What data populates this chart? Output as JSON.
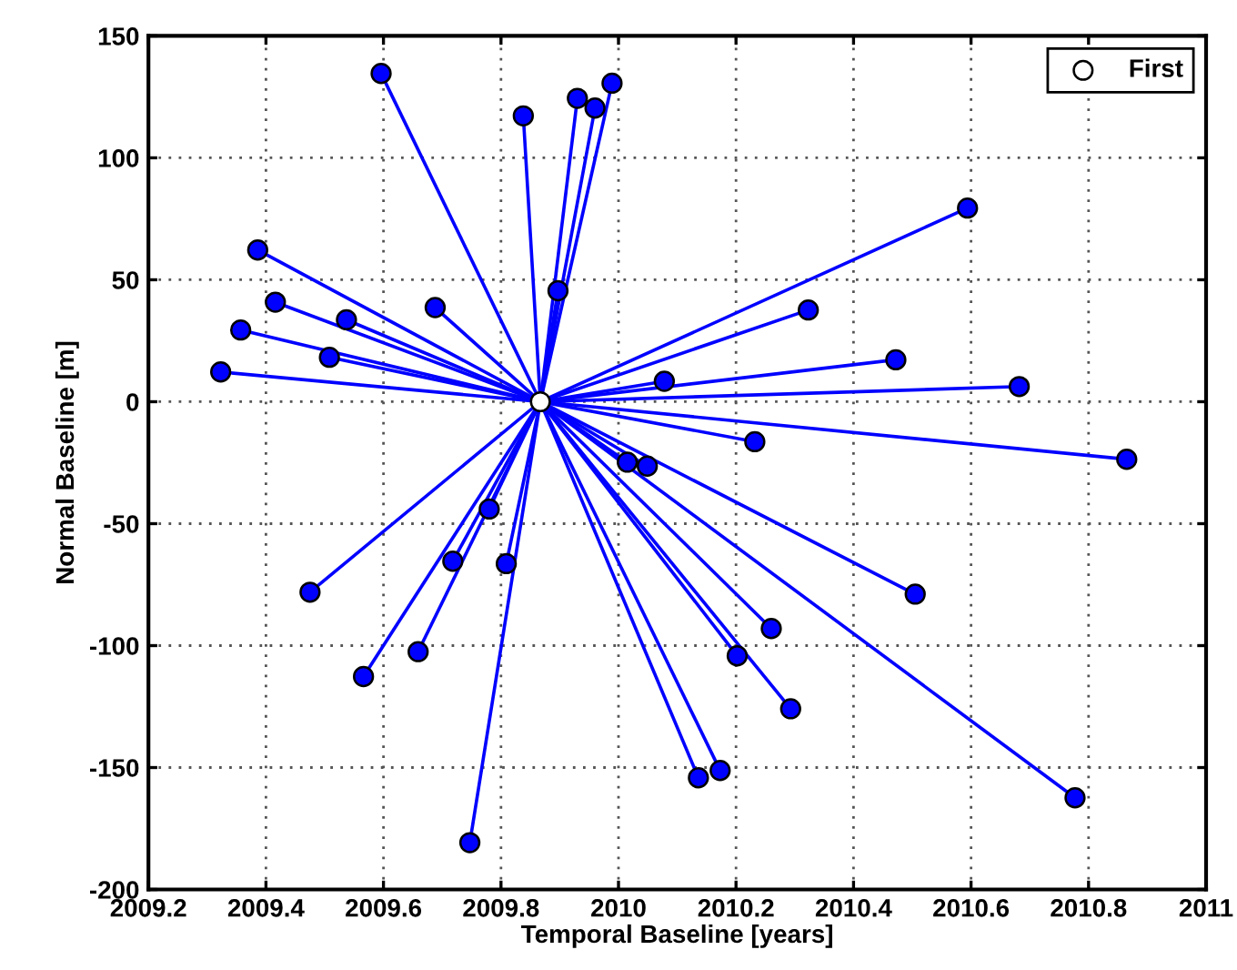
{
  "chart_data": {
    "type": "line",
    "xlabel": "Temporal Baseline [years]",
    "ylabel": "Normal Baseline [m]",
    "xlim": [
      2009.2,
      2011
    ],
    "ylim": [
      -200,
      150
    ],
    "xticks": [
      2009.2,
      2009.4,
      2009.6,
      2009.8,
      2010,
      2010.2,
      2010.4,
      2010.6,
      2010.8,
      2011
    ],
    "yticks": [
      -200,
      -150,
      -100,
      -50,
      0,
      50,
      100,
      150
    ],
    "grid": true,
    "legend": "top right",
    "marker": "circle",
    "line_style": "solid",
    "series": [
      {
        "color": "#0000ff",
        "x": [
          2009.867,
          2009.596
        ],
        "values": [
          0,
          134.6
        ]
      },
      {
        "color": "#0000ff",
        "x": [
          2009.867,
          2009.838
        ],
        "values": [
          0,
          117.2
        ]
      },
      {
        "color": "#0000ff",
        "x": [
          2009.867,
          2009.93
        ],
        "values": [
          0,
          124.4
        ]
      },
      {
        "color": "#0000ff",
        "x": [
          2009.867,
          2009.96
        ],
        "values": [
          0,
          120.4
        ]
      },
      {
        "color": "#0000ff",
        "x": [
          2009.867,
          2009.989
        ],
        "values": [
          0,
          130.6
        ]
      },
      {
        "color": "#0000ff",
        "x": [
          2009.867,
          2009.897
        ],
        "values": [
          0,
          45.5
        ]
      },
      {
        "color": "#0000ff",
        "x": [
          2009.867,
          2009.386
        ],
        "values": [
          0,
          62.2
        ]
      },
      {
        "color": "#0000ff",
        "x": [
          2009.867,
          2009.416
        ],
        "values": [
          0,
          40.8
        ]
      },
      {
        "color": "#0000ff",
        "x": [
          2009.867,
          2009.357
        ],
        "values": [
          0,
          29.4
        ]
      },
      {
        "color": "#0000ff",
        "x": [
          2009.867,
          2009.537
        ],
        "values": [
          0,
          33.6
        ]
      },
      {
        "color": "#0000ff",
        "x": [
          2009.867,
          2009.508
        ],
        "values": [
          0,
          18.2
        ]
      },
      {
        "color": "#0000ff",
        "x": [
          2009.867,
          2009.323
        ],
        "values": [
          0,
          12.2
        ]
      },
      {
        "color": "#0000ff",
        "x": [
          2009.867,
          2009.688
        ],
        "values": [
          0,
          38.6
        ]
      },
      {
        "color": "#0000ff",
        "x": [
          2009.867,
          2010.078
        ],
        "values": [
          0,
          8.4
        ]
      },
      {
        "color": "#0000ff",
        "x": [
          2009.867,
          2010.594
        ],
        "values": [
          0,
          79.4
        ]
      },
      {
        "color": "#0000ff",
        "x": [
          2009.867,
          2010.323
        ],
        "values": [
          0,
          37.6
        ]
      },
      {
        "color": "#0000ff",
        "x": [
          2009.867,
          2010.472
        ],
        "values": [
          0,
          17.2
        ]
      },
      {
        "color": "#0000ff",
        "x": [
          2009.867,
          2010.682
        ],
        "values": [
          0,
          6.2
        ]
      },
      {
        "color": "#0000ff",
        "x": [
          2009.867,
          2010.232
        ],
        "values": [
          0,
          -16.4
        ]
      },
      {
        "color": "#0000ff",
        "x": [
          2009.867,
          2010.865
        ],
        "values": [
          0,
          -23.6
        ]
      },
      {
        "color": "#0000ff",
        "x": [
          2009.867,
          2010.015
        ],
        "values": [
          0,
          -24.8
        ]
      },
      {
        "color": "#0000ff",
        "x": [
          2009.867,
          2010.049
        ],
        "values": [
          0,
          -26.4
        ]
      },
      {
        "color": "#0000ff",
        "x": [
          2009.867,
          2009.475
        ],
        "values": [
          0,
          -78.1
        ]
      },
      {
        "color": "#0000ff",
        "x": [
          2009.867,
          2009.566
        ],
        "values": [
          0,
          -112.7
        ]
      },
      {
        "color": "#0000ff",
        "x": [
          2009.867,
          2009.659
        ],
        "values": [
          0,
          -102.5
        ]
      },
      {
        "color": "#0000ff",
        "x": [
          2009.867,
          2009.718
        ],
        "values": [
          0,
          -65.4
        ]
      },
      {
        "color": "#0000ff",
        "x": [
          2009.867,
          2009.78
        ],
        "values": [
          0,
          -44.0
        ]
      },
      {
        "color": "#0000ff",
        "x": [
          2009.867,
          2009.809
        ],
        "values": [
          0,
          -66.4
        ]
      },
      {
        "color": "#0000ff",
        "x": [
          2009.867,
          2009.747
        ],
        "values": [
          0,
          -180.8
        ]
      },
      {
        "color": "#0000ff",
        "x": [
          2009.867,
          2010.505
        ],
        "values": [
          0,
          -78.9
        ]
      },
      {
        "color": "#0000ff",
        "x": [
          2009.867,
          2010.26
        ],
        "values": [
          0,
          -93.0
        ]
      },
      {
        "color": "#0000ff",
        "x": [
          2009.867,
          2010.202
        ],
        "values": [
          0,
          -104.2
        ]
      },
      {
        "color": "#0000ff",
        "x": [
          2009.867,
          2010.293
        ],
        "values": [
          0,
          -125.9
        ]
      },
      {
        "color": "#0000ff",
        "x": [
          2009.867,
          2010.173
        ],
        "values": [
          0,
          -151.2
        ]
      },
      {
        "color": "#0000ff",
        "x": [
          2009.867,
          2010.136
        ],
        "values": [
          0,
          -154.2
        ]
      },
      {
        "color": "#0000ff",
        "x": [
          2009.867,
          2010.777
        ],
        "values": [
          0,
          -162.4
        ]
      },
      {
        "type": "scatter",
        "name": "First",
        "color": "#ffffff",
        "x": [
          2009.867
        ],
        "values": [
          0
        ]
      }
    ]
  }
}
